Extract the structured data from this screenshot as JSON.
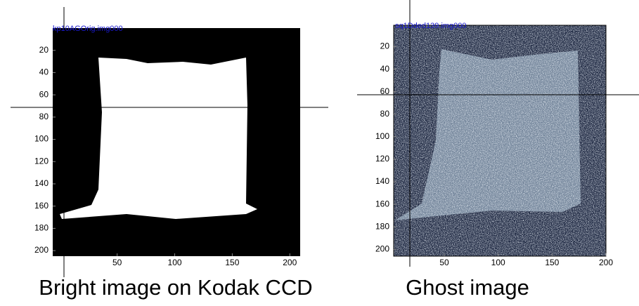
{
  "chart_data": [
    {
      "type": "image",
      "title": "kp10AGOrig.img000",
      "caption": "Bright image on Kodak CCD",
      "xlim": [
        -6,
        209
      ],
      "ylim": [
        0,
        205
      ],
      "xticks": [
        50,
        100,
        150,
        200
      ],
      "yticks": [
        20,
        40,
        60,
        80,
        100,
        120,
        140,
        160,
        180,
        200
      ]
    },
    {
      "type": "image",
      "title": "sq1Dded139.img000",
      "caption": "Ghost image",
      "xlim": [
        3,
        200
      ],
      "ylim": [
        1,
        206
      ],
      "xticks": [
        50,
        100,
        150,
        200
      ],
      "yticks": [
        20,
        40,
        60,
        80,
        100,
        120,
        140,
        160,
        180,
        200
      ]
    }
  ]
}
